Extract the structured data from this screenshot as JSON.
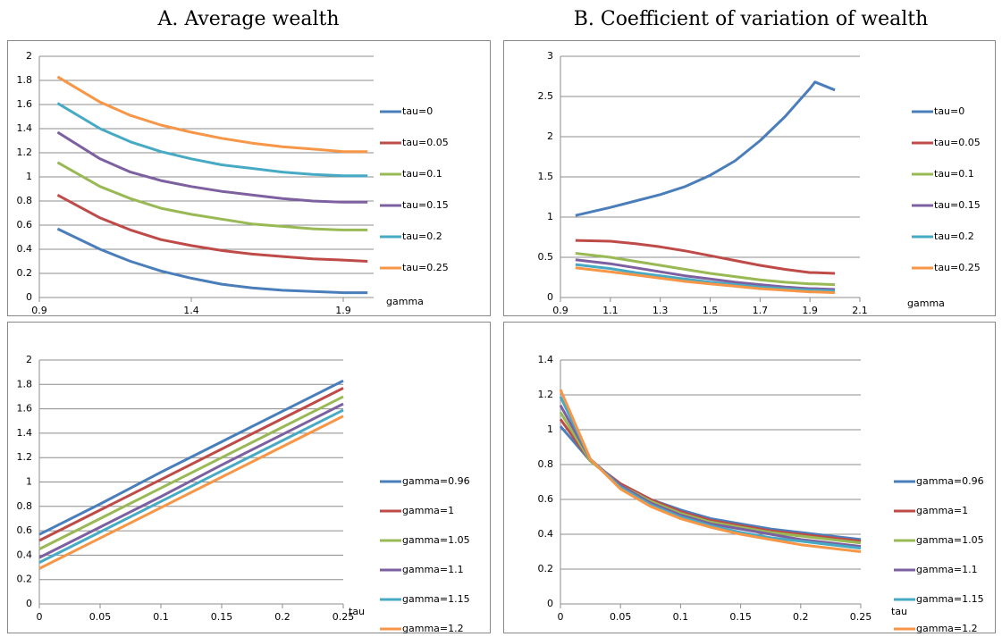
{
  "titles": [
    "A. Average wealth",
    "B. Coefficient of variation of wealth"
  ],
  "chart_data": [
    {
      "type": "line",
      "xlabel": "gamma",
      "grid": true,
      "legend": "right",
      "x": [
        0.96,
        1.1,
        1.2,
        1.3,
        1.4,
        1.5,
        1.6,
        1.7,
        1.8,
        1.9,
        1.98
      ],
      "xlim": [
        0.9,
        2.0
      ],
      "xticks": [
        0.9,
        1.4,
        1.9
      ],
      "ylim": [
        0,
        2
      ],
      "yticks": [
        0,
        0.2,
        0.4,
        0.6,
        0.8,
        1,
        1.2,
        1.4,
        1.6,
        1.8,
        2
      ],
      "series": [
        {
          "name": "tau=0",
          "color": "#4a7ebb",
          "values": [
            0.57,
            0.4,
            0.3,
            0.22,
            0.16,
            0.11,
            0.08,
            0.06,
            0.05,
            0.04,
            0.04
          ]
        },
        {
          "name": "tau=0.05",
          "color": "#be4b48",
          "values": [
            0.85,
            0.66,
            0.56,
            0.48,
            0.43,
            0.39,
            0.36,
            0.34,
            0.32,
            0.31,
            0.3
          ]
        },
        {
          "name": "tau=0.1",
          "color": "#98b954",
          "values": [
            1.12,
            0.92,
            0.82,
            0.74,
            0.69,
            0.65,
            0.61,
            0.59,
            0.57,
            0.56,
            0.56
          ]
        },
        {
          "name": "tau=0.15",
          "color": "#7d60a0",
          "values": [
            1.37,
            1.15,
            1.04,
            0.97,
            0.92,
            0.88,
            0.85,
            0.82,
            0.8,
            0.79,
            0.79
          ]
        },
        {
          "name": "tau=0.2",
          "color": "#46aac5",
          "values": [
            1.61,
            1.4,
            1.29,
            1.21,
            1.15,
            1.1,
            1.07,
            1.04,
            1.02,
            1.01,
            1.01
          ]
        },
        {
          "name": "tau=0.25",
          "color": "#f79646",
          "values": [
            1.83,
            1.62,
            1.51,
            1.43,
            1.37,
            1.32,
            1.28,
            1.25,
            1.23,
            1.21,
            1.21
          ]
        }
      ]
    },
    {
      "type": "line",
      "xlabel": "gamma",
      "grid": true,
      "legend": "right",
      "x": [
        0.96,
        1.1,
        1.2,
        1.3,
        1.4,
        1.5,
        1.6,
        1.7,
        1.8,
        1.9,
        1.92,
        2.0
      ],
      "xlim": [
        0.9,
        2.1
      ],
      "xticks": [
        0.9,
        1.1,
        1.3,
        1.5,
        1.7,
        1.9,
        2.1
      ],
      "ylim": [
        0,
        3
      ],
      "yticks": [
        0,
        0.5,
        1,
        1.5,
        2,
        2.5,
        3
      ],
      "series": [
        {
          "name": "tau=0",
          "color": "#4a7ebb",
          "values": [
            1.02,
            1.12,
            1.2,
            1.28,
            1.38,
            1.52,
            1.7,
            1.95,
            2.25,
            2.6,
            2.68,
            2.58
          ]
        },
        {
          "name": "tau=0.05",
          "color": "#be4b48",
          "values": [
            0.71,
            0.7,
            0.67,
            0.63,
            0.58,
            0.52,
            0.46,
            0.4,
            0.35,
            0.31,
            0.31,
            0.3
          ]
        },
        {
          "name": "tau=0.1",
          "color": "#98b954",
          "values": [
            0.55,
            0.5,
            0.45,
            0.4,
            0.35,
            0.3,
            0.26,
            0.22,
            0.19,
            0.17,
            0.17,
            0.16
          ]
        },
        {
          "name": "tau=0.15",
          "color": "#7d60a0",
          "values": [
            0.47,
            0.42,
            0.37,
            0.32,
            0.27,
            0.23,
            0.19,
            0.16,
            0.13,
            0.11,
            0.11,
            0.1
          ]
        },
        {
          "name": "tau=0.2",
          "color": "#46aac5",
          "values": [
            0.41,
            0.36,
            0.31,
            0.27,
            0.23,
            0.19,
            0.16,
            0.13,
            0.11,
            0.09,
            0.09,
            0.08
          ]
        },
        {
          "name": "tau=0.25",
          "color": "#f79646",
          "values": [
            0.37,
            0.32,
            0.28,
            0.24,
            0.2,
            0.17,
            0.14,
            0.11,
            0.09,
            0.07,
            0.07,
            0.06
          ]
        }
      ]
    },
    {
      "type": "line",
      "xlabel": "tau",
      "grid": true,
      "legend": "right",
      "x": [
        0,
        0.05,
        0.1,
        0.15,
        0.2,
        0.25
      ],
      "xlim": [
        0,
        0.25
      ],
      "xticks": [
        0,
        0.05,
        0.1,
        0.15,
        0.2,
        0.25
      ],
      "ylim": [
        0,
        2
      ],
      "yticks": [
        0,
        0.2,
        0.4,
        0.6,
        0.8,
        1,
        1.2,
        1.4,
        1.6,
        1.8,
        2
      ],
      "series": [
        {
          "name": "gamma=0.96",
          "color": "#4a7ebb",
          "values": [
            0.57,
            0.82,
            1.08,
            1.33,
            1.58,
            1.83
          ]
        },
        {
          "name": "gamma=1",
          "color": "#be4b48",
          "values": [
            0.52,
            0.77,
            1.02,
            1.27,
            1.52,
            1.77
          ]
        },
        {
          "name": "gamma=1.05",
          "color": "#98b954",
          "values": [
            0.45,
            0.7,
            0.95,
            1.2,
            1.45,
            1.7
          ]
        },
        {
          "name": "gamma=1.1",
          "color": "#7d60a0",
          "values": [
            0.38,
            0.63,
            0.88,
            1.14,
            1.39,
            1.64
          ]
        },
        {
          "name": "gamma=1.15",
          "color": "#46aac5",
          "values": [
            0.34,
            0.59,
            0.84,
            1.09,
            1.34,
            1.59
          ]
        },
        {
          "name": "gamma=1.2",
          "color": "#f79646",
          "values": [
            0.29,
            0.54,
            0.79,
            1.04,
            1.29,
            1.54
          ]
        }
      ]
    },
    {
      "type": "line",
      "xlabel": "tau",
      "grid": true,
      "legend": "right",
      "x": [
        0,
        0.025,
        0.05,
        0.075,
        0.1,
        0.125,
        0.15,
        0.175,
        0.2,
        0.225,
        0.25
      ],
      "xlim": [
        0,
        0.25
      ],
      "xticks": [
        0,
        0.05,
        0.1,
        0.15,
        0.2,
        0.25
      ],
      "ylim": [
        0,
        1.4
      ],
      "yticks": [
        0,
        0.2,
        0.4,
        0.6,
        0.8,
        1,
        1.2,
        1.4
      ],
      "series": [
        {
          "name": "gamma=0.96",
          "color": "#4a7ebb",
          "values": [
            1.02,
            0.82,
            0.69,
            0.6,
            0.54,
            0.49,
            0.46,
            0.43,
            0.41,
            0.39,
            0.37
          ]
        },
        {
          "name": "gamma=1",
          "color": "#be4b48",
          "values": [
            1.06,
            0.82,
            0.69,
            0.6,
            0.53,
            0.48,
            0.45,
            0.42,
            0.4,
            0.38,
            0.36
          ]
        },
        {
          "name": "gamma=1.05",
          "color": "#98b954",
          "values": [
            1.1,
            0.82,
            0.68,
            0.59,
            0.52,
            0.47,
            0.44,
            0.41,
            0.39,
            0.37,
            0.35
          ]
        },
        {
          "name": "gamma=1.1",
          "color": "#7d60a0",
          "values": [
            1.14,
            0.83,
            0.68,
            0.58,
            0.51,
            0.46,
            0.43,
            0.4,
            0.37,
            0.35,
            0.33
          ]
        },
        {
          "name": "gamma=1.15",
          "color": "#46aac5",
          "values": [
            1.19,
            0.83,
            0.67,
            0.57,
            0.5,
            0.45,
            0.41,
            0.38,
            0.36,
            0.34,
            0.32
          ]
        },
        {
          "name": "gamma=1.2",
          "color": "#f79646",
          "values": [
            1.23,
            0.83,
            0.66,
            0.56,
            0.49,
            0.44,
            0.4,
            0.37,
            0.34,
            0.32,
            0.3
          ]
        }
      ]
    }
  ]
}
